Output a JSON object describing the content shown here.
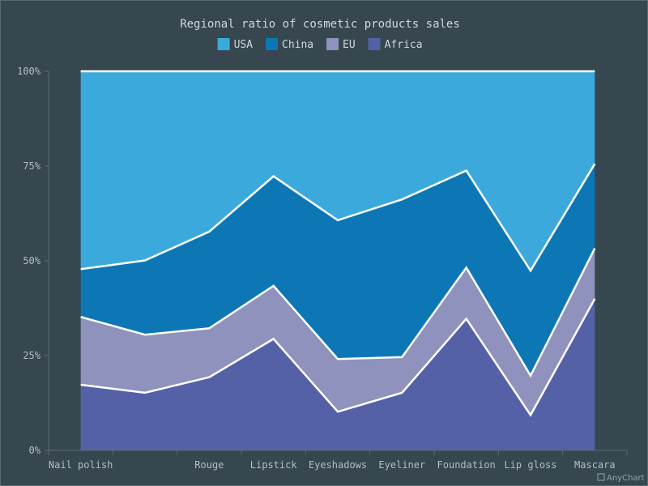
{
  "chart_data": {
    "type": "area",
    "stacking": "percent",
    "title": "Regional ratio of cosmetic products sales",
    "legend_position": "top",
    "categories": [
      "Nail polish",
      "",
      "Rouge",
      "Lipstick",
      "Eyeshadows",
      "Eyeliner",
      "Foundation",
      "Lip gloss",
      "Mascara"
    ],
    "y_ticks": [
      "0%",
      "25%",
      "50%",
      "75%",
      "100%"
    ],
    "ylim": [
      0,
      100
    ],
    "grid": false,
    "series": [
      {
        "name": "Africa",
        "color": "#5561a6",
        "values": [
          17.3,
          15.2,
          19.3,
          29.4,
          10.2,
          15.2,
          34.7,
          9.3,
          40.0
        ]
      },
      {
        "name": "EU",
        "color": "#8e92bc",
        "values": [
          17.9,
          15.3,
          12.9,
          14.0,
          13.9,
          9.4,
          13.5,
          10.4,
          13.3
        ]
      },
      {
        "name": "China",
        "color": "#0d77b5",
        "values": [
          12.6,
          19.6,
          25.5,
          28.9,
          36.6,
          41.6,
          25.6,
          27.7,
          22.3
        ]
      },
      {
        "name": "USA",
        "color": "#3ca9dd",
        "values": [
          52.2,
          49.9,
          42.3,
          27.7,
          39.3,
          33.8,
          26.2,
          52.6,
          24.4
        ]
      }
    ],
    "legend_order": [
      "USA",
      "China",
      "EU",
      "Africa"
    ],
    "stroke_color": "#ffffff",
    "axis_color": "#5b6b73",
    "text_color": "#cfd8dc"
  },
  "credit": "AnyChart"
}
